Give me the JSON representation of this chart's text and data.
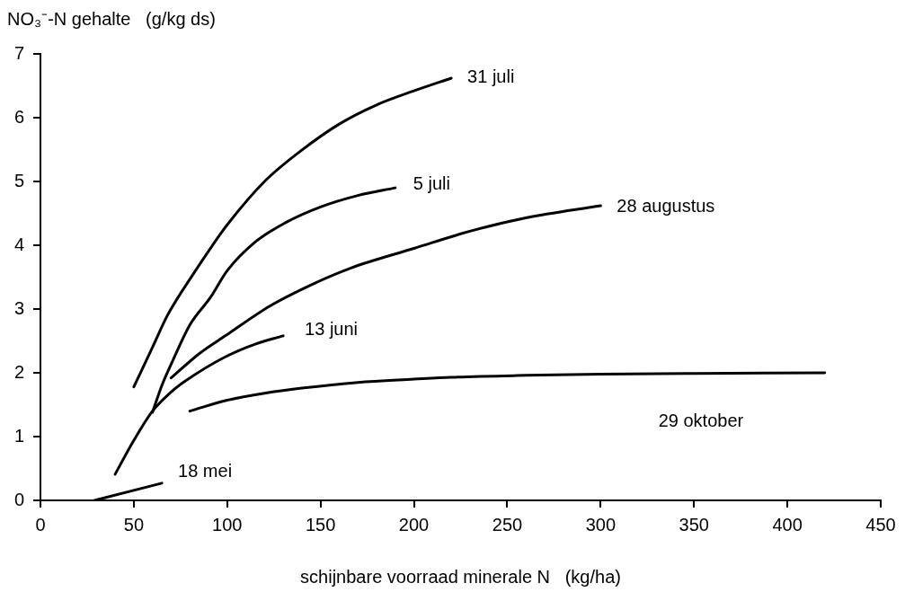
{
  "chart_data": {
    "type": "line",
    "ylabel": "NO₃⁻-N gehalte   (g/kg ds)",
    "xlabel": "schijnbare voorraad minerale N   (kg/ha)",
    "xlim": [
      0,
      450
    ],
    "xticks": [
      0,
      50,
      100,
      150,
      200,
      250,
      300,
      350,
      400,
      450
    ],
    "ylim": [
      0,
      7
    ],
    "yticks": [
      0,
      1,
      2,
      3,
      4,
      5,
      6,
      7
    ],
    "grid": false,
    "legend": false,
    "marker": "none",
    "line_style": "solid",
    "series": [
      {
        "name": "18 mei",
        "color": "#000000",
        "x": [
          29,
          65
        ],
        "values": [
          0,
          0.27
        ]
      },
      {
        "name": "13 juni",
        "color": "#000000",
        "x": [
          40,
          50,
          60,
          70,
          78,
          99,
          115,
          130
        ],
        "values": [
          0.41,
          0.94,
          1.4,
          1.7,
          1.88,
          2.25,
          2.45,
          2.58
        ]
      },
      {
        "name": "5 juli",
        "color": "#000000",
        "x": [
          60,
          65,
          71,
          80,
          91,
          100,
          115,
          131,
          150,
          170,
          190
        ],
        "values": [
          1.38,
          1.8,
          2.2,
          2.75,
          3.18,
          3.6,
          4.05,
          4.35,
          4.6,
          4.78,
          4.9
        ]
      },
      {
        "name": "31 juli",
        "color": "#000000",
        "x": [
          50,
          60,
          68,
          83,
          91,
          100,
          120,
          139,
          160,
          180,
          200,
          220
        ],
        "values": [
          1.78,
          2.4,
          2.9,
          3.6,
          3.95,
          4.32,
          5.0,
          5.47,
          5.9,
          6.2,
          6.42,
          6.62
        ]
      },
      {
        "name": "28 augustus",
        "color": "#000000",
        "x": [
          70,
          85,
          99,
          123,
          145,
          166,
          200,
          230,
          260,
          300
        ],
        "values": [
          1.92,
          2.3,
          2.58,
          3.05,
          3.38,
          3.64,
          3.95,
          4.22,
          4.43,
          4.62
        ]
      },
      {
        "name": "29 oktober",
        "color": "#000000",
        "x": [
          80,
          100,
          120,
          140,
          170,
          200,
          220,
          260,
          300,
          350,
          420
        ],
        "values": [
          1.4,
          1.57,
          1.68,
          1.76,
          1.85,
          1.9,
          1.93,
          1.96,
          1.98,
          1.99,
          2.0
        ]
      }
    ]
  }
}
